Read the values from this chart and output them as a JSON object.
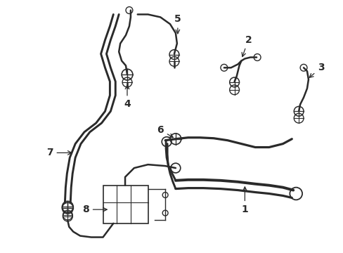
{
  "background": "#ffffff",
  "line_color": "#2a2a2a",
  "line_width": 1.8,
  "label_fontsize": 10,
  "fig_width": 4.89,
  "fig_height": 3.6,
  "dpi": 100
}
